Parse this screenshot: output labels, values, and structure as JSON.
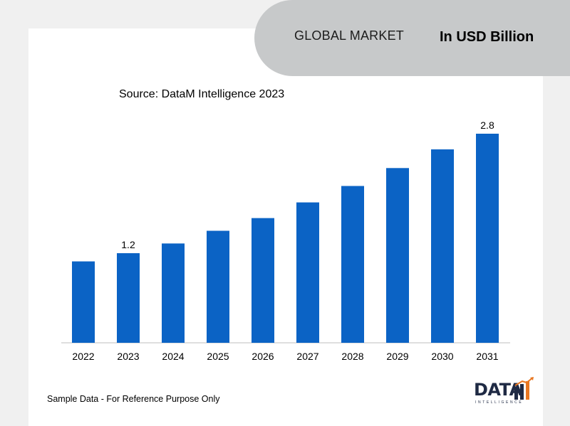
{
  "header": {
    "title": "GLOBAL MARKET",
    "unit": "In USD Billion"
  },
  "source": "Source: DataM Intelligence 2023",
  "footnote": "Sample Data - For Reference Purpose Only",
  "logo": {
    "word": "DATA",
    "sub": "INTELLIGENCE"
  },
  "colors": {
    "bar": "#0b63c5",
    "tab": "#c7c9ca",
    "background": "#f0f0f0",
    "logo_accent": "#e87722"
  },
  "chart_data": {
    "type": "bar",
    "title": "",
    "xlabel": "",
    "ylabel": "",
    "categories": [
      "2022",
      "2023",
      "2024",
      "2025",
      "2026",
      "2027",
      "2028",
      "2029",
      "2030",
      "2031"
    ],
    "values": [
      1.09,
      1.2,
      1.33,
      1.5,
      1.67,
      1.88,
      2.1,
      2.34,
      2.59,
      2.8
    ],
    "data_labels": [
      {
        "category": "2023",
        "text": "1.2"
      },
      {
        "category": "2031",
        "text": "2.8"
      }
    ],
    "ylim": [
      0,
      2.8
    ],
    "grid": false,
    "legend": "none"
  }
}
